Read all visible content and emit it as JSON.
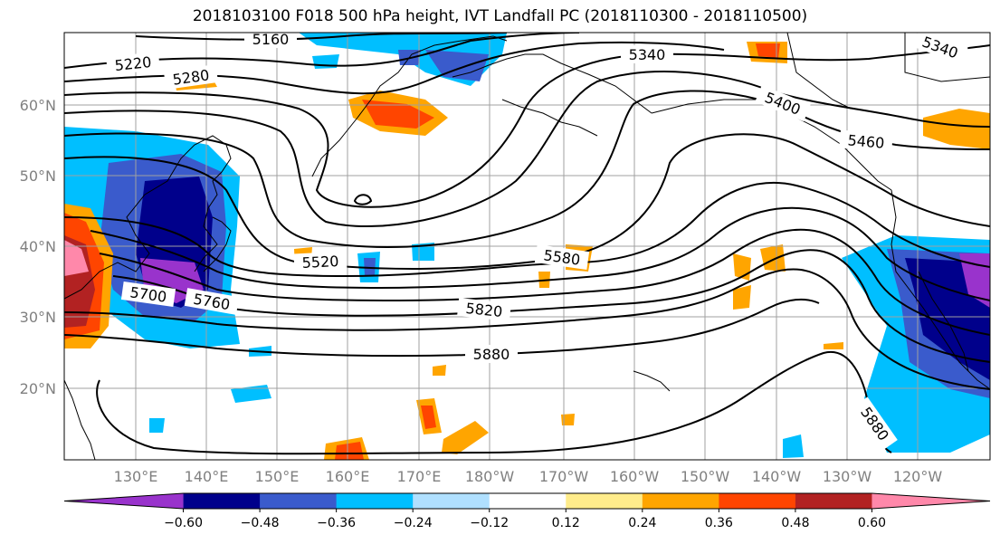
{
  "title": "2018103100 F018 500 hPa height, IVT Landfall PC (2018110300 - 2018110500)",
  "lat_ticks": [
    "60°N",
    "50°N",
    "40°N",
    "30°N",
    "20°N"
  ],
  "lon_ticks": [
    "130°E",
    "140°E",
    "150°E",
    "160°E",
    "170°E",
    "180°W",
    "170°W",
    "160°W",
    "150°W",
    "140°W",
    "130°W",
    "120°W"
  ],
  "contour_labels": [
    "5160",
    "5220",
    "5280",
    "5340",
    "5340",
    "5400",
    "5460",
    "5520",
    "5580",
    "5760",
    "5700",
    "5820",
    "5880",
    "5880"
  ],
  "colorbar": {
    "colors": [
      "#9933cc",
      "#00008b",
      "#3a5bcc",
      "#00bfff",
      "#b0e0ff",
      "#ffffff",
      "#ffec8b",
      "#ffa500",
      "#ff4500",
      "#b22222",
      "#ff88aa"
    ],
    "tick_labels": [
      "−0.60",
      "−0.48",
      "−0.36",
      "−0.24",
      "−0.12",
      "0.12",
      "0.24",
      "0.36",
      "0.48",
      "0.60"
    ]
  },
  "field_colors": {
    "neg_strong": "#00008b",
    "neg_mid": "#3a5bcc",
    "neg_light": "#00bfff",
    "neg_extreme": "#9933cc",
    "pos_light": "#ffec8b",
    "pos_mid": "#ffa500",
    "pos_strong": "#ff4500",
    "pos_extreme": "#b22222",
    "pos_max": "#ff88aa"
  }
}
